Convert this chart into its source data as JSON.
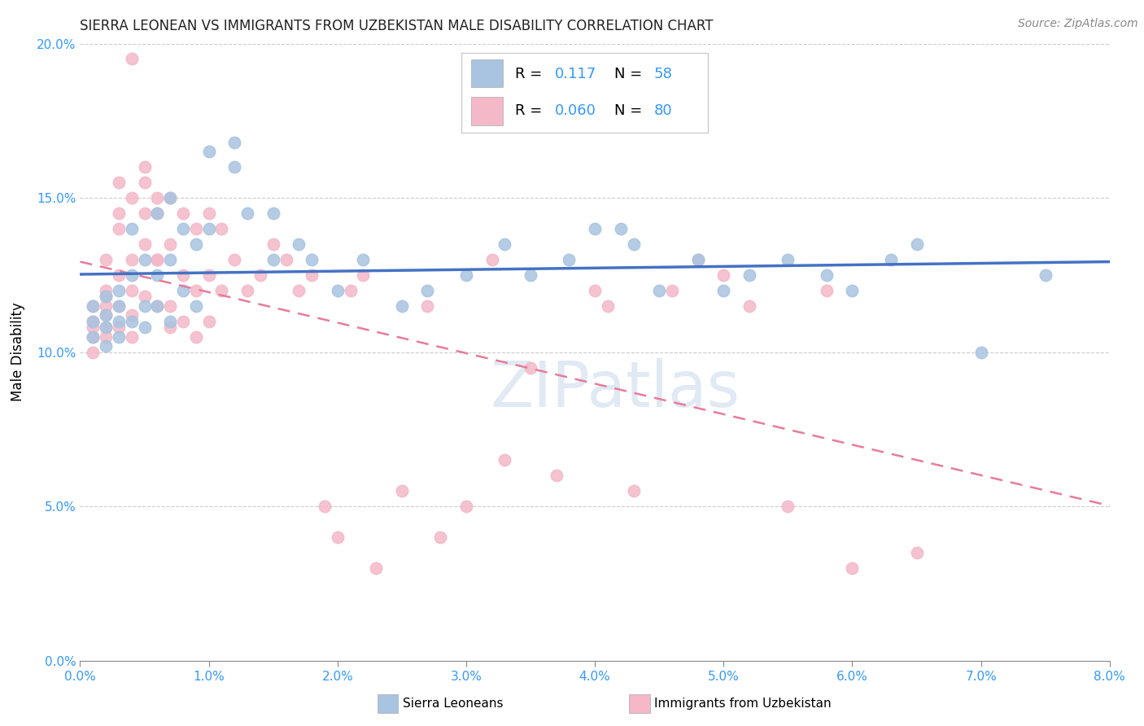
{
  "title": "SIERRA LEONEAN VS IMMIGRANTS FROM UZBEKISTAN MALE DISABILITY CORRELATION CHART",
  "source_text": "Source: ZipAtlas.com",
  "ylabel": "Male Disability",
  "xmin": 0.0,
  "xmax": 0.08,
  "ymin": 0.0,
  "ymax": 0.2,
  "yticks": [
    0.0,
    0.05,
    0.1,
    0.15,
    0.2
  ],
  "ytick_labels": [
    "0.0%",
    "5.0%",
    "10.0%",
    "15.0%",
    "20.0%"
  ],
  "xticks": [
    0.0,
    0.01,
    0.02,
    0.03,
    0.04,
    0.05,
    0.06,
    0.07,
    0.08
  ],
  "xtick_labels": [
    "0.0%",
    "1.0%",
    "2.0%",
    "3.0%",
    "4.0%",
    "5.0%",
    "6.0%",
    "7.0%",
    "8.0%"
  ],
  "legend_r_blue": "0.117",
  "legend_n_blue": "58",
  "legend_r_pink": "0.060",
  "legend_n_pink": "80",
  "color_blue": "#a8c4e0",
  "color_pink": "#f4b8c8",
  "line_color_blue": "#4472c4",
  "line_color_pink": "#e87b9a",
  "watermark": "ZIPatlas",
  "blue_scatter": [
    [
      0.001,
      0.11
    ],
    [
      0.001,
      0.105
    ],
    [
      0.001,
      0.115
    ],
    [
      0.002,
      0.112
    ],
    [
      0.002,
      0.108
    ],
    [
      0.002,
      0.118
    ],
    [
      0.002,
      0.102
    ],
    [
      0.003,
      0.12
    ],
    [
      0.003,
      0.11
    ],
    [
      0.003,
      0.105
    ],
    [
      0.003,
      0.115
    ],
    [
      0.004,
      0.14
    ],
    [
      0.004,
      0.125
    ],
    [
      0.004,
      0.11
    ],
    [
      0.005,
      0.13
    ],
    [
      0.005,
      0.115
    ],
    [
      0.005,
      0.108
    ],
    [
      0.006,
      0.145
    ],
    [
      0.006,
      0.125
    ],
    [
      0.006,
      0.115
    ],
    [
      0.007,
      0.15
    ],
    [
      0.007,
      0.13
    ],
    [
      0.007,
      0.11
    ],
    [
      0.008,
      0.14
    ],
    [
      0.008,
      0.12
    ],
    [
      0.009,
      0.135
    ],
    [
      0.009,
      0.115
    ],
    [
      0.01,
      0.165
    ],
    [
      0.01,
      0.14
    ],
    [
      0.012,
      0.168
    ],
    [
      0.012,
      0.16
    ],
    [
      0.013,
      0.145
    ],
    [
      0.015,
      0.145
    ],
    [
      0.015,
      0.13
    ],
    [
      0.017,
      0.135
    ],
    [
      0.018,
      0.13
    ],
    [
      0.02,
      0.12
    ],
    [
      0.022,
      0.13
    ],
    [
      0.025,
      0.115
    ],
    [
      0.027,
      0.12
    ],
    [
      0.03,
      0.125
    ],
    [
      0.033,
      0.135
    ],
    [
      0.035,
      0.125
    ],
    [
      0.038,
      0.13
    ],
    [
      0.04,
      0.14
    ],
    [
      0.042,
      0.14
    ],
    [
      0.043,
      0.135
    ],
    [
      0.045,
      0.12
    ],
    [
      0.048,
      0.13
    ],
    [
      0.05,
      0.12
    ],
    [
      0.052,
      0.125
    ],
    [
      0.055,
      0.13
    ],
    [
      0.058,
      0.125
    ],
    [
      0.06,
      0.12
    ],
    [
      0.063,
      0.13
    ],
    [
      0.065,
      0.135
    ],
    [
      0.07,
      0.1
    ],
    [
      0.075,
      0.125
    ]
  ],
  "pink_scatter": [
    [
      0.001,
      0.11
    ],
    [
      0.001,
      0.105
    ],
    [
      0.001,
      0.115
    ],
    [
      0.001,
      0.108
    ],
    [
      0.001,
      0.1
    ],
    [
      0.002,
      0.12
    ],
    [
      0.002,
      0.112
    ],
    [
      0.002,
      0.105
    ],
    [
      0.002,
      0.115
    ],
    [
      0.002,
      0.108
    ],
    [
      0.002,
      0.13
    ],
    [
      0.002,
      0.118
    ],
    [
      0.003,
      0.14
    ],
    [
      0.003,
      0.125
    ],
    [
      0.003,
      0.115
    ],
    [
      0.003,
      0.108
    ],
    [
      0.003,
      0.155
    ],
    [
      0.003,
      0.145
    ],
    [
      0.004,
      0.15
    ],
    [
      0.004,
      0.13
    ],
    [
      0.004,
      0.12
    ],
    [
      0.004,
      0.112
    ],
    [
      0.004,
      0.105
    ],
    [
      0.004,
      0.195
    ],
    [
      0.005,
      0.155
    ],
    [
      0.005,
      0.135
    ],
    [
      0.005,
      0.118
    ],
    [
      0.005,
      0.16
    ],
    [
      0.005,
      0.145
    ],
    [
      0.006,
      0.15
    ],
    [
      0.006,
      0.13
    ],
    [
      0.006,
      0.115
    ],
    [
      0.006,
      0.145
    ],
    [
      0.006,
      0.13
    ],
    [
      0.007,
      0.135
    ],
    [
      0.007,
      0.115
    ],
    [
      0.007,
      0.108
    ],
    [
      0.007,
      0.15
    ],
    [
      0.008,
      0.145
    ],
    [
      0.008,
      0.125
    ],
    [
      0.008,
      0.11
    ],
    [
      0.009,
      0.14
    ],
    [
      0.009,
      0.12
    ],
    [
      0.009,
      0.105
    ],
    [
      0.01,
      0.145
    ],
    [
      0.01,
      0.125
    ],
    [
      0.01,
      0.11
    ],
    [
      0.011,
      0.14
    ],
    [
      0.011,
      0.12
    ],
    [
      0.012,
      0.13
    ],
    [
      0.013,
      0.12
    ],
    [
      0.014,
      0.125
    ],
    [
      0.015,
      0.135
    ],
    [
      0.016,
      0.13
    ],
    [
      0.017,
      0.12
    ],
    [
      0.018,
      0.125
    ],
    [
      0.019,
      0.05
    ],
    [
      0.02,
      0.04
    ],
    [
      0.021,
      0.12
    ],
    [
      0.022,
      0.125
    ],
    [
      0.023,
      0.03
    ],
    [
      0.025,
      0.055
    ],
    [
      0.027,
      0.115
    ],
    [
      0.028,
      0.04
    ],
    [
      0.03,
      0.05
    ],
    [
      0.032,
      0.13
    ],
    [
      0.033,
      0.065
    ],
    [
      0.035,
      0.095
    ],
    [
      0.037,
      0.06
    ],
    [
      0.04,
      0.12
    ],
    [
      0.041,
      0.115
    ],
    [
      0.043,
      0.055
    ],
    [
      0.046,
      0.12
    ],
    [
      0.048,
      0.13
    ],
    [
      0.05,
      0.125
    ],
    [
      0.052,
      0.115
    ],
    [
      0.055,
      0.05
    ],
    [
      0.058,
      0.12
    ],
    [
      0.06,
      0.03
    ],
    [
      0.065,
      0.035
    ]
  ]
}
